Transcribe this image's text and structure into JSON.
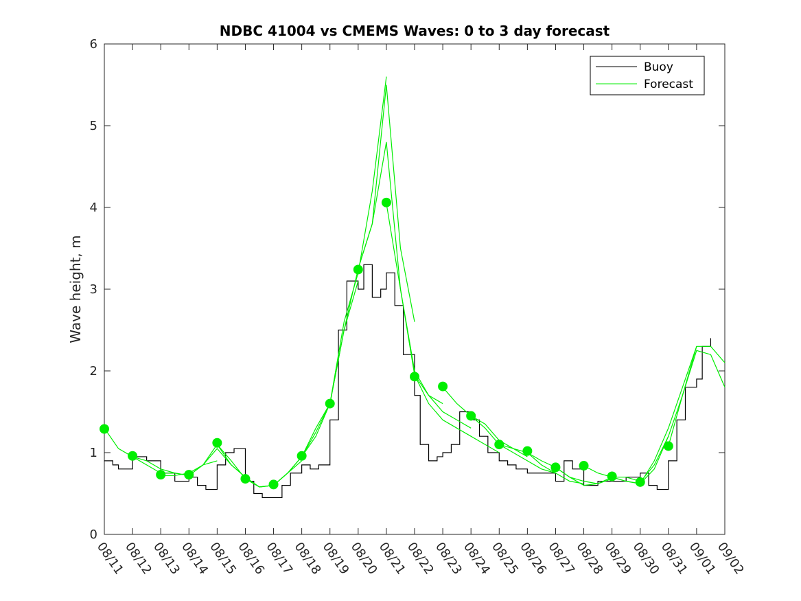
{
  "chart_data": {
    "type": "line",
    "title": "NDBC 41004 vs CMEMS Waves: 0 to 3 day forecast",
    "xlabel": "",
    "ylabel": "Wave height, m",
    "x_ticks": [
      "08/11",
      "08/12",
      "08/13",
      "08/14",
      "08/15",
      "08/16",
      "08/17",
      "08/18",
      "08/19",
      "08/20",
      "08/21",
      "08/22",
      "08/23",
      "08/24",
      "08/25",
      "08/26",
      "08/27",
      "08/28",
      "08/29",
      "08/30",
      "08/31",
      "09/01",
      "09/02"
    ],
    "y_ticks": [
      "0",
      "1",
      "2",
      "3",
      "4",
      "5",
      "6"
    ],
    "xlim": [
      0,
      22
    ],
    "ylim": [
      0,
      6
    ],
    "grid": false,
    "legend": {
      "position": "top-right",
      "entries": [
        {
          "label": "Buoy",
          "color": "#000000"
        },
        {
          "label": "Forecast",
          "color": "#00ee00"
        }
      ]
    },
    "buoy": {
      "name": "Buoy",
      "color": "#000000",
      "x": [
        0,
        0.3,
        0.5,
        1.0,
        1.5,
        2.0,
        2.5,
        3.0,
        3.3,
        3.6,
        4.0,
        4.3,
        4.6,
        5.0,
        5.3,
        5.6,
        6.0,
        6.3,
        6.6,
        7.0,
        7.3,
        7.6,
        8.0,
        8.3,
        8.6,
        9.0,
        9.2,
        9.5,
        9.8,
        10.0,
        10.3,
        10.6,
        11.0,
        11.2,
        11.5,
        11.8,
        12.0,
        12.3,
        12.6,
        13.0,
        13.3,
        13.6,
        14.0,
        14.3,
        14.6,
        15.0,
        15.5,
        16.0,
        16.3,
        16.6,
        17.0,
        17.5,
        18.0,
        18.5,
        19.0,
        19.3,
        19.6,
        20.0,
        20.3,
        20.6,
        21.0,
        21.2,
        21.5
      ],
      "y": [
        0.9,
        0.85,
        0.8,
        0.95,
        0.9,
        0.75,
        0.65,
        0.7,
        0.6,
        0.55,
        0.85,
        1.0,
        1.05,
        0.65,
        0.5,
        0.45,
        0.45,
        0.6,
        0.75,
        0.85,
        0.8,
        0.85,
        1.4,
        2.5,
        3.1,
        3.0,
        3.3,
        2.9,
        3.0,
        3.2,
        2.8,
        2.2,
        1.7,
        1.1,
        0.9,
        0.95,
        1.0,
        1.1,
        1.5,
        1.4,
        1.2,
        1.0,
        0.9,
        0.85,
        0.8,
        0.75,
        0.75,
        0.65,
        0.9,
        0.8,
        0.6,
        0.65,
        0.65,
        0.7,
        0.75,
        0.6,
        0.55,
        0.9,
        1.4,
        1.8,
        1.9,
        2.3,
        2.4
      ]
    },
    "forecast_series": [
      {
        "name": "Forecast",
        "x": [
          0,
          0.5,
          1,
          1.5,
          2,
          2.5,
          3
        ],
        "y": [
          1.3,
          1.05,
          0.95,
          0.85,
          0.75,
          0.75,
          0.72
        ]
      },
      {
        "name": "Forecast",
        "x": [
          1,
          1.5,
          2,
          2.5,
          3,
          3.5,
          4
        ],
        "y": [
          0.95,
          0.9,
          0.8,
          0.75,
          0.72,
          0.85,
          0.9
        ]
      },
      {
        "name": "Forecast",
        "x": [
          2,
          2.5,
          3,
          3.5,
          4,
          4.5,
          5
        ],
        "y": [
          0.72,
          0.72,
          0.75,
          0.85,
          1.05,
          0.85,
          0.7
        ]
      },
      {
        "name": "Forecast",
        "x": [
          3,
          3.5,
          4,
          4.5,
          5,
          5.5,
          6
        ],
        "y": [
          0.72,
          0.85,
          1.1,
          0.85,
          0.7,
          0.58,
          0.6
        ]
      },
      {
        "name": "Forecast",
        "x": [
          4,
          4.5,
          5,
          5.5,
          6,
          6.5,
          7
        ],
        "y": [
          1.1,
          0.9,
          0.68,
          0.58,
          0.6,
          0.75,
          0.9
        ]
      },
      {
        "name": "Forecast",
        "x": [
          5,
          5.5,
          6,
          6.5,
          7,
          7.5,
          8
        ],
        "y": [
          0.68,
          0.58,
          0.6,
          0.75,
          0.95,
          1.3,
          1.6
        ]
      },
      {
        "name": "Forecast",
        "x": [
          6,
          6.5,
          7,
          7.5,
          8,
          8.5,
          9
        ],
        "y": [
          0.6,
          0.75,
          0.95,
          1.25,
          1.6,
          2.5,
          3.1
        ]
      },
      {
        "name": "Forecast",
        "x": [
          7,
          7.5,
          8,
          8.5,
          9,
          9.5,
          10
        ],
        "y": [
          0.95,
          1.2,
          1.6,
          2.6,
          3.2,
          4.2,
          5.6
        ]
      },
      {
        "name": "Forecast",
        "x": [
          8,
          8.5,
          9,
          9.5,
          10,
          10.5,
          11
        ],
        "y": [
          1.6,
          2.5,
          3.25,
          3.8,
          5.5,
          3.5,
          2.6
        ]
      },
      {
        "name": "Forecast",
        "x": [
          9,
          9.5,
          10,
          10.5,
          11,
          11.5,
          12
        ],
        "y": [
          3.25,
          3.8,
          4.8,
          3.0,
          2.0,
          1.7,
          1.6
        ]
      },
      {
        "name": "Forecast",
        "x": [
          10,
          10.5,
          11,
          11.5,
          12,
          12.5,
          13
        ],
        "y": [
          4.05,
          3.0,
          1.95,
          1.7,
          1.5,
          1.4,
          1.3
        ]
      },
      {
        "name": "Forecast",
        "x": [
          11,
          11.5,
          12,
          12.5,
          13,
          13.5,
          14
        ],
        "y": [
          1.95,
          1.6,
          1.4,
          1.3,
          1.2,
          1.1,
          1.0
        ]
      },
      {
        "name": "Forecast",
        "x": [
          12,
          12.5,
          13,
          13.5,
          14,
          14.5,
          15
        ],
        "y": [
          1.8,
          1.6,
          1.45,
          1.35,
          1.15,
          1.05,
          0.95
        ]
      },
      {
        "name": "Forecast",
        "x": [
          13,
          13.5,
          14,
          14.5,
          15,
          15.5,
          16
        ],
        "y": [
          1.45,
          1.3,
          1.1,
          1.0,
          0.9,
          0.8,
          0.75
        ]
      },
      {
        "name": "Forecast",
        "x": [
          14,
          14.5,
          15,
          15.5,
          16,
          16.5,
          17
        ],
        "y": [
          1.1,
          1.05,
          1.0,
          0.85,
          0.75,
          0.65,
          0.62
        ]
      },
      {
        "name": "Forecast",
        "x": [
          15,
          15.5,
          16,
          16.5,
          17,
          17.5,
          18
        ],
        "y": [
          1.0,
          0.9,
          0.82,
          0.7,
          0.6,
          0.62,
          0.68
        ]
      },
      {
        "name": "Forecast",
        "x": [
          16,
          16.5,
          17,
          17.5,
          18,
          18.5,
          19
        ],
        "y": [
          0.82,
          0.7,
          0.65,
          0.62,
          0.7,
          0.7,
          0.65
        ]
      },
      {
        "name": "Forecast",
        "x": [
          17,
          17.5,
          18,
          18.5,
          19,
          19.5,
          20
        ],
        "y": [
          0.84,
          0.75,
          0.7,
          0.65,
          0.62,
          0.8,
          1.2
        ]
      },
      {
        "name": "Forecast",
        "x": [
          18,
          18.5,
          19,
          19.5,
          20,
          20.5,
          21
        ],
        "y": [
          0.7,
          0.65,
          0.62,
          0.9,
          1.3,
          1.8,
          2.3
        ]
      },
      {
        "name": "Forecast",
        "x": [
          19,
          19.5,
          20,
          20.5,
          21,
          21.5,
          22
        ],
        "y": [
          0.64,
          0.85,
          1.2,
          1.7,
          2.25,
          2.2,
          1.8
        ]
      },
      {
        "name": "Forecast",
        "x": [
          20,
          20.5,
          21,
          21.5,
          22
        ],
        "y": [
          1.08,
          1.7,
          2.3,
          2.3,
          2.1
        ]
      }
    ],
    "forecast_points": {
      "x": [
        0,
        1,
        2,
        3,
        4,
        5,
        6,
        7,
        8,
        9,
        10,
        11,
        12,
        13,
        14,
        15,
        16,
        17,
        18,
        19,
        20
      ],
      "y": [
        1.29,
        0.96,
        0.73,
        0.73,
        1.12,
        0.68,
        0.61,
        0.96,
        1.6,
        3.24,
        4.06,
        1.93,
        1.81,
        1.45,
        1.1,
        1.02,
        0.82,
        0.84,
        0.71,
        0.64,
        1.08
      ]
    }
  }
}
